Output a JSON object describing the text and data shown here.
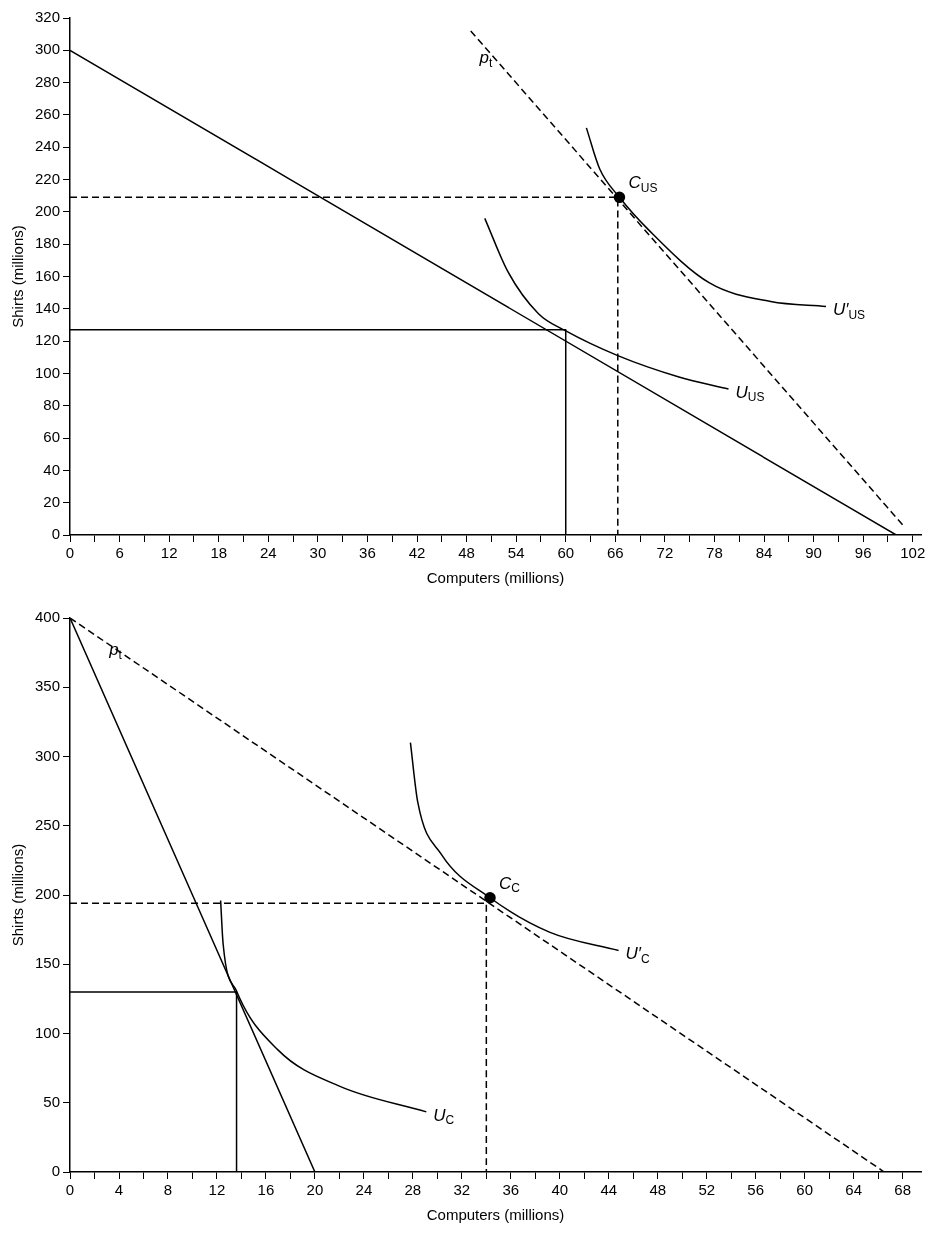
{
  "chart_data": [
    {
      "type": "line",
      "xlabel": "Computers (millions)",
      "ylabel": "Shirts (millions)",
      "xlim": [
        0,
        103
      ],
      "ylim": [
        0,
        320
      ],
      "xticks": [
        0,
        {
          "value": 3,
          "label": null
        },
        6,
        {
          "value": 9,
          "label": null
        },
        12,
        {
          "value": 15,
          "label": null
        },
        18,
        {
          "value": 21,
          "label": null
        },
        24,
        {
          "value": 27,
          "label": null
        },
        30,
        {
          "value": 33,
          "label": null
        },
        36,
        {
          "value": 39,
          "label": null
        },
        42,
        {
          "value": 45,
          "label": null
        },
        48,
        {
          "value": 51,
          "label": null
        },
        54,
        {
          "value": 57,
          "label": null
        },
        60,
        {
          "value": 63,
          "label": null
        },
        66,
        {
          "value": 69,
          "label": null
        },
        72,
        {
          "value": 75,
          "label": null
        },
        78,
        {
          "value": 81,
          "label": null
        },
        84,
        {
          "value": 87,
          "label": null
        },
        90,
        {
          "value": 93,
          "label": null
        },
        96,
        {
          "value": 99,
          "label": null
        },
        102
      ],
      "yticks": [
        0,
        20,
        40,
        60,
        80,
        100,
        120,
        140,
        160,
        180,
        200,
        220,
        240,
        260,
        280,
        300,
        320
      ],
      "grid": false,
      "legend": false,
      "series": [
        {
          "type": "line",
          "color": "#000000",
          "line_style": "solid",
          "x": [
            0,
            100
          ],
          "values": [
            300,
            0
          ]
        },
        {
          "type": "line",
          "name": "p$_{t}$",
          "color": "#000000",
          "line_style": "dashed",
          "x": [
            48.5,
            101
          ],
          "values": [
            312,
            5
          ]
        },
        {
          "type": "line",
          "name": "U$_{US}$",
          "color": "#000000",
          "line_style": "solid",
          "x": [
            50.2,
            53,
            56.7,
            59.9,
            66.3,
            73.7,
            79.7
          ],
          "values": [
            196,
            163,
            137,
            126.6,
            111,
            97.8,
            90.4
          ]
        },
        {
          "type": "line",
          "name": "U′$_{US}$",
          "color": "#000000",
          "line_style": "solid",
          "x": [
            62.5,
            64.1,
            66.5,
            70,
            77.4,
            84.8,
            91.5
          ],
          "values": [
            252,
            226.7,
            209,
            189,
            156,
            144.5,
            141.5
          ]
        },
        {
          "type": "line",
          "color": "#000000",
          "line_style": "dashed",
          "x": [
            0,
            66.3,
            66.3
          ],
          "values": [
            209,
            209,
            0
          ]
        },
        {
          "type": "line",
          "color": "#000000",
          "line_style": "solid",
          "x": [
            0,
            60,
            60
          ],
          "values": [
            127,
            127,
            0
          ]
        },
        {
          "type": "scatter",
          "name": "C$_{US}$",
          "color": "#000000",
          "marker": "circle",
          "x": [
            66.5
          ],
          "values": [
            209
          ]
        }
      ]
    },
    {
      "type": "line",
      "xlabel": "Computers (millions)",
      "ylabel": "Shirts (millions)",
      "xlim": [
        0,
        69.5
      ],
      "ylim": [
        0,
        400
      ],
      "xticks": [
        0,
        {
          "value": 2,
          "label": null
        },
        4,
        {
          "value": 6,
          "label": null
        },
        8,
        {
          "value": 10,
          "label": null
        },
        12,
        {
          "value": 14,
          "label": null
        },
        16,
        {
          "value": 18,
          "label": null
        },
        20,
        {
          "value": 22,
          "label": null
        },
        24,
        {
          "value": 26,
          "label": null
        },
        28,
        {
          "value": 30,
          "label": null
        },
        32,
        {
          "value": 34,
          "label": null
        },
        36,
        {
          "value": 38,
          "label": null
        },
        40,
        {
          "value": 42,
          "label": null
        },
        44,
        {
          "value": 46,
          "label": null
        },
        48,
        {
          "value": 50,
          "label": null
        },
        52,
        {
          "value": 54,
          "label": null
        },
        56,
        {
          "value": 58,
          "label": null
        },
        60,
        {
          "value": 62,
          "label": null
        },
        64,
        {
          "value": 66,
          "label": null
        },
        68
      ],
      "yticks": [
        0,
        50,
        100,
        150,
        200,
        250,
        300,
        350,
        400
      ],
      "grid": false,
      "legend": false,
      "series": [
        {
          "type": "line",
          "color": "#000000",
          "line_style": "solid",
          "x": [
            0,
            20
          ],
          "values": [
            400,
            0
          ]
        },
        {
          "type": "line",
          "name": "p$_{t}$",
          "color": "#000000",
          "line_style": "dashed",
          "x": [
            0,
            66.5
          ],
          "values": [
            400,
            0
          ]
        },
        {
          "type": "line",
          "name": "U$_{C}$",
          "color": "#000000",
          "line_style": "solid",
          "x": [
            12.3,
            12.5,
            13.6,
            17,
            22,
            29.1
          ],
          "values": [
            196,
            165,
            130.7,
            88,
            62,
            43.4
          ]
        },
        {
          "type": "line",
          "name": "U′$_{C}$",
          "color": "#000000",
          "line_style": "solid",
          "x": [
            27.8,
            28.4,
            30.3,
            34.3,
            39.2,
            44.8
          ],
          "values": [
            310,
            267,
            229.7,
            198,
            173,
            160
          ]
        },
        {
          "type": "line",
          "color": "#000000",
          "line_style": "dashed",
          "x": [
            0,
            34,
            34
          ],
          "values": [
            194,
            194,
            0
          ]
        },
        {
          "type": "line",
          "color": "#000000",
          "line_style": "solid",
          "x": [
            0,
            13.6,
            13.6
          ],
          "values": [
            130,
            130,
            0
          ]
        },
        {
          "type": "scatter",
          "name": "C$_{C}$",
          "color": "#000000",
          "marker": "circle",
          "x": [
            34.3
          ],
          "values": [
            198
          ]
        }
      ]
    }
  ]
}
